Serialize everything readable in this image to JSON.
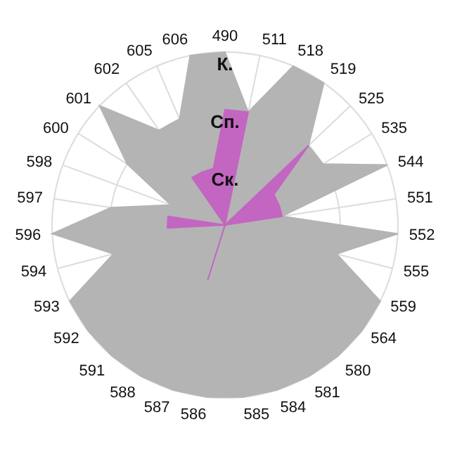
{
  "chart_data": {
    "type": "radar",
    "categories": [
      "490",
      "511",
      "518",
      "519",
      "525",
      "535",
      "544",
      "551",
      "552",
      "555",
      "559",
      "564",
      "580",
      "581",
      "584",
      "585",
      "586",
      "587",
      "588",
      "591",
      "592",
      "593",
      "594",
      "596",
      "597",
      "598",
      "600",
      "601",
      "602",
      "605",
      "606"
    ],
    "series": [
      {
        "color": "#b4b4b4",
        "values": [
          3,
          2,
          3,
          3,
          2,
          2,
          3,
          1,
          3,
          2,
          3,
          3,
          3,
          3,
          3,
          3,
          3,
          3,
          3,
          3,
          3,
          3,
          2,
          3,
          2,
          1,
          2,
          3,
          2,
          2,
          3
        ]
      },
      {
        "color": "#c266c2",
        "values": [
          2,
          2,
          0,
          0,
          2,
          1,
          1,
          1,
          0,
          0,
          0,
          0,
          0,
          0,
          0,
          0,
          0,
          1,
          0,
          0,
          0,
          0,
          0,
          1,
          1,
          0,
          0,
          0,
          1,
          1,
          1
        ]
      }
    ],
    "ylim": [
      0,
      3
    ],
    "yticks": [
      {
        "value": 1,
        "label": "Ск."
      },
      {
        "value": 2,
        "label": "Сп."
      },
      {
        "value": 3,
        "label": "К."
      }
    ],
    "grid": true,
    "legend": false
  }
}
